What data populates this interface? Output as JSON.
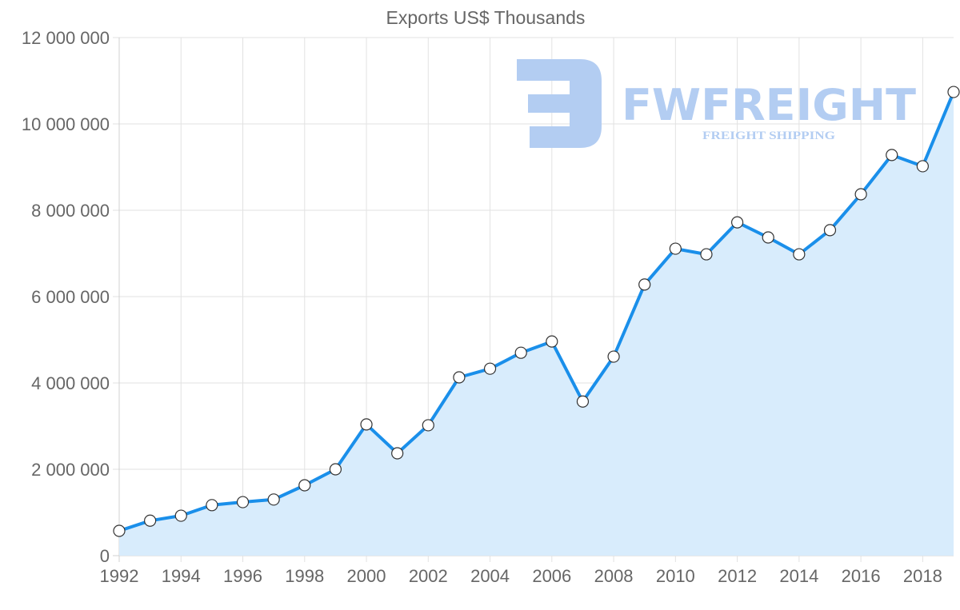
{
  "chart_data": {
    "type": "line",
    "title": "Exports US$ Thousands",
    "xlabel": "",
    "ylabel": "",
    "x": [
      1992,
      1993,
      1994,
      1995,
      1996,
      1997,
      1998,
      1999,
      2000,
      2001,
      2002,
      2003,
      2004,
      2005,
      2006,
      2007,
      2008,
      2009,
      2010,
      2011,
      2012,
      2013,
      2014,
      2015,
      2016,
      2017,
      2018,
      2019
    ],
    "series": [
      {
        "name": "Exports US$ Thousands",
        "values": [
          574000,
          810000,
          925000,
          1170000,
          1240000,
          1300000,
          1630000,
          2000000,
          3040000,
          2370000,
          3020000,
          4130000,
          4330000,
          4700000,
          4960000,
          3570000,
          4610000,
          6280000,
          7110000,
          6980000,
          7720000,
          7370000,
          6980000,
          7540000,
          8370000,
          9280000,
          9020000,
          10740000
        ]
      }
    ],
    "ylim": [
      0,
      12000000
    ],
    "xlim": [
      1992,
      2019
    ],
    "y_ticks": [
      "0",
      "2 000 000",
      "4 000 000",
      "6 000 000",
      "8 000 000",
      "10 000 000",
      "12 000 000"
    ],
    "y_tick_values": [
      0,
      2000000,
      4000000,
      6000000,
      8000000,
      10000000,
      12000000
    ],
    "x_ticks": [
      "1992",
      "1994",
      "1996",
      "1998",
      "2000",
      "2002",
      "2004",
      "2006",
      "2008",
      "2010",
      "2012",
      "2014",
      "2016",
      "2018"
    ],
    "x_tick_values": [
      1992,
      1994,
      1996,
      1998,
      2000,
      2002,
      2004,
      2006,
      2008,
      2010,
      2012,
      2014,
      2016,
      2018
    ],
    "grid": true,
    "legend": "none",
    "fill": true
  },
  "colors": {
    "line": "#1a8fea",
    "fill": "#d8ecfc",
    "point_fill": "#ffffff",
    "point_stroke": "#333333",
    "watermark": "#b3cdf2"
  },
  "watermark": {
    "brand": "FWFREIGHT",
    "tagline": "FREIGHT SHIPPING"
  }
}
